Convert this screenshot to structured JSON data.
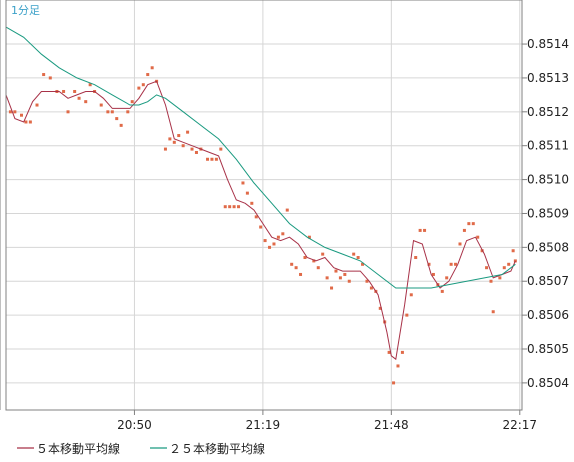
{
  "timeframe_label": "1分足",
  "legend": {
    "ma5_label": "５本移動平均線",
    "ma25_label": "２５本移動平均線"
  },
  "colors": {
    "candle": "#e06a48",
    "ma5": "#a83248",
    "ma25": "#1a9a80",
    "timeframe": "#3aa0c8",
    "grid": "#d6d6d6",
    "axis": "#808080"
  },
  "chart_data": {
    "type": "scatter",
    "title": "",
    "xlabel": "",
    "ylabel": "",
    "x_tick_labels": [
      "20:50",
      "21:19",
      "21:48",
      "22:17"
    ],
    "y_tick_labels": [
      "0.8504",
      "0.8505",
      "0.8506",
      "0.8507",
      "0.8508",
      "0.8509",
      "0.8510",
      "0.8511",
      "0.8512",
      "0.8513",
      "0.8514"
    ],
    "ylim": [
      0.85032,
      0.85153
    ],
    "grid": true,
    "x_unit": "minutes since 20:21",
    "price_points": [
      [
        1.0,
        0.8512
      ],
      [
        2.0,
        0.8512
      ],
      [
        3.5,
        0.85119
      ],
      [
        4.5,
        0.85117
      ],
      [
        5.5,
        0.85117
      ],
      [
        7.0,
        0.85122
      ],
      [
        8.5,
        0.85131
      ],
      [
        10.0,
        0.8513
      ],
      [
        11.5,
        0.85126
      ],
      [
        13.0,
        0.85126
      ],
      [
        14.0,
        0.8512
      ],
      [
        15.5,
        0.85126
      ],
      [
        16.5,
        0.85124
      ],
      [
        18.0,
        0.85123
      ],
      [
        19.0,
        0.85128
      ],
      [
        20.0,
        0.85126
      ],
      [
        21.5,
        0.85122
      ],
      [
        23.0,
        0.8512
      ],
      [
        24.0,
        0.8512
      ],
      [
        25.0,
        0.85118
      ],
      [
        26.0,
        0.85116
      ],
      [
        27.5,
        0.8512
      ],
      [
        28.5,
        0.85123
      ],
      [
        30.0,
        0.85127
      ],
      [
        31.0,
        0.85128
      ],
      [
        32.0,
        0.85131
      ],
      [
        33.0,
        0.85133
      ],
      [
        34.0,
        0.85129
      ],
      [
        36.0,
        0.85109
      ],
      [
        37.0,
        0.85112
      ],
      [
        38.0,
        0.85111
      ],
      [
        39.0,
        0.85113
      ],
      [
        40.0,
        0.8511
      ],
      [
        41.0,
        0.85114
      ],
      [
        42.0,
        0.85109
      ],
      [
        43.0,
        0.85108
      ],
      [
        44.0,
        0.85109
      ],
      [
        45.5,
        0.85106
      ],
      [
        46.5,
        0.85106
      ],
      [
        47.5,
        0.85106
      ],
      [
        48.5,
        0.85109
      ],
      [
        49.5,
        0.85092
      ],
      [
        50.5,
        0.85092
      ],
      [
        51.5,
        0.85092
      ],
      [
        52.5,
        0.85092
      ],
      [
        53.5,
        0.85099
      ],
      [
        54.5,
        0.85096
      ],
      [
        55.5,
        0.85093
      ],
      [
        56.5,
        0.85089
      ],
      [
        57.5,
        0.85086
      ],
      [
        58.5,
        0.85082
      ],
      [
        59.5,
        0.8508
      ],
      [
        60.5,
        0.85081
      ],
      [
        61.5,
        0.85083
      ],
      [
        62.5,
        0.85084
      ],
      [
        63.5,
        0.85091
      ],
      [
        64.5,
        0.85075
      ],
      [
        65.5,
        0.85074
      ],
      [
        66.5,
        0.85072
      ],
      [
        67.5,
        0.85077
      ],
      [
        68.5,
        0.85083
      ],
      [
        69.5,
        0.85076
      ],
      [
        70.5,
        0.85074
      ],
      [
        71.5,
        0.85078
      ],
      [
        72.5,
        0.85071
      ],
      [
        73.5,
        0.85068
      ],
      [
        74.5,
        0.85073
      ],
      [
        75.5,
        0.85071
      ],
      [
        76.5,
        0.85072
      ],
      [
        77.5,
        0.8507
      ],
      [
        78.5,
        0.85078
      ],
      [
        79.5,
        0.85077
      ],
      [
        80.5,
        0.85075
      ],
      [
        81.5,
        0.8507
      ],
      [
        82.5,
        0.85068
      ],
      [
        83.5,
        0.85067
      ],
      [
        84.5,
        0.85062
      ],
      [
        85.5,
        0.85058
      ],
      [
        86.5,
        0.85049
      ],
      [
        87.5,
        0.8504
      ],
      [
        88.5,
        0.85045
      ],
      [
        89.5,
        0.85049
      ],
      [
        90.5,
        0.8506
      ],
      [
        91.5,
        0.85066
      ],
      [
        92.5,
        0.85077
      ],
      [
        93.5,
        0.85085
      ],
      [
        94.5,
        0.85085
      ],
      [
        95.5,
        0.85075
      ],
      [
        96.5,
        0.85072
      ],
      [
        97.5,
        0.85069
      ],
      [
        98.5,
        0.85067
      ],
      [
        99.5,
        0.85071
      ],
      [
        100.5,
        0.85075
      ],
      [
        101.5,
        0.85075
      ],
      [
        102.5,
        0.85081
      ],
      [
        103.5,
        0.85085
      ],
      [
        104.5,
        0.85087
      ],
      [
        105.5,
        0.85087
      ],
      [
        106.5,
        0.85083
      ],
      [
        107.5,
        0.85079
      ],
      [
        108.5,
        0.85074
      ],
      [
        109.5,
        0.8507
      ],
      [
        110.0,
        0.85061
      ],
      [
        111.5,
        0.85071
      ],
      [
        112.5,
        0.85074
      ],
      [
        113.5,
        0.85075
      ],
      [
        114.5,
        0.85079
      ],
      [
        115.0,
        0.85076
      ]
    ],
    "series": [
      {
        "name": "５本移動平均線",
        "x": [
          0,
          2,
          4,
          6,
          8,
          10,
          12,
          14,
          16,
          18,
          20,
          22,
          24,
          26,
          28,
          30,
          32,
          34,
          36,
          38,
          40,
          42,
          44,
          46,
          48,
          50,
          52,
          54,
          56,
          58,
          60,
          62,
          64,
          66,
          68,
          70,
          72,
          74,
          76,
          78,
          80,
          82,
          84,
          86,
          87,
          88,
          90,
          92,
          94,
          96,
          98,
          100,
          102,
          104,
          106,
          108,
          110,
          112,
          114,
          115
        ],
        "y": [
          0.85125,
          0.85118,
          0.85117,
          0.85123,
          0.85126,
          0.85126,
          0.85126,
          0.85124,
          0.85125,
          0.85126,
          0.85126,
          0.85124,
          0.85121,
          0.85121,
          0.85121,
          0.85124,
          0.85128,
          0.85129,
          0.85122,
          0.85112,
          0.85111,
          0.8511,
          0.85109,
          0.85108,
          0.85107,
          0.851,
          0.85094,
          0.85093,
          0.85091,
          0.85087,
          0.85083,
          0.85082,
          0.85083,
          0.85081,
          0.85077,
          0.85076,
          0.85077,
          0.85074,
          0.85073,
          0.85073,
          0.85073,
          0.8507,
          0.85066,
          0.85055,
          0.85048,
          0.85047,
          0.85063,
          0.85082,
          0.85081,
          0.85072,
          0.85068,
          0.8507,
          0.85075,
          0.85082,
          0.85083,
          0.85078,
          0.85071,
          0.85072,
          0.85073,
          0.85076
        ]
      },
      {
        "name": "２５本移動平均線",
        "x": [
          0,
          4,
          8,
          12,
          16,
          20,
          24,
          28,
          30,
          32,
          34,
          36,
          40,
          44,
          48,
          52,
          56,
          60,
          64,
          68,
          72,
          76,
          80,
          84,
          88,
          92,
          96,
          100,
          104,
          108,
          112,
          115
        ],
        "y": [
          0.85145,
          0.85142,
          0.85137,
          0.85133,
          0.8513,
          0.85128,
          0.85125,
          0.85122,
          0.85122,
          0.85123,
          0.85125,
          0.85124,
          0.8512,
          0.85116,
          0.85112,
          0.85106,
          0.85099,
          0.85093,
          0.85087,
          0.85083,
          0.8508,
          0.85078,
          0.85076,
          0.85072,
          0.85068,
          0.85068,
          0.85068,
          0.85069,
          0.8507,
          0.85071,
          0.85072,
          0.85075
        ]
      }
    ]
  }
}
